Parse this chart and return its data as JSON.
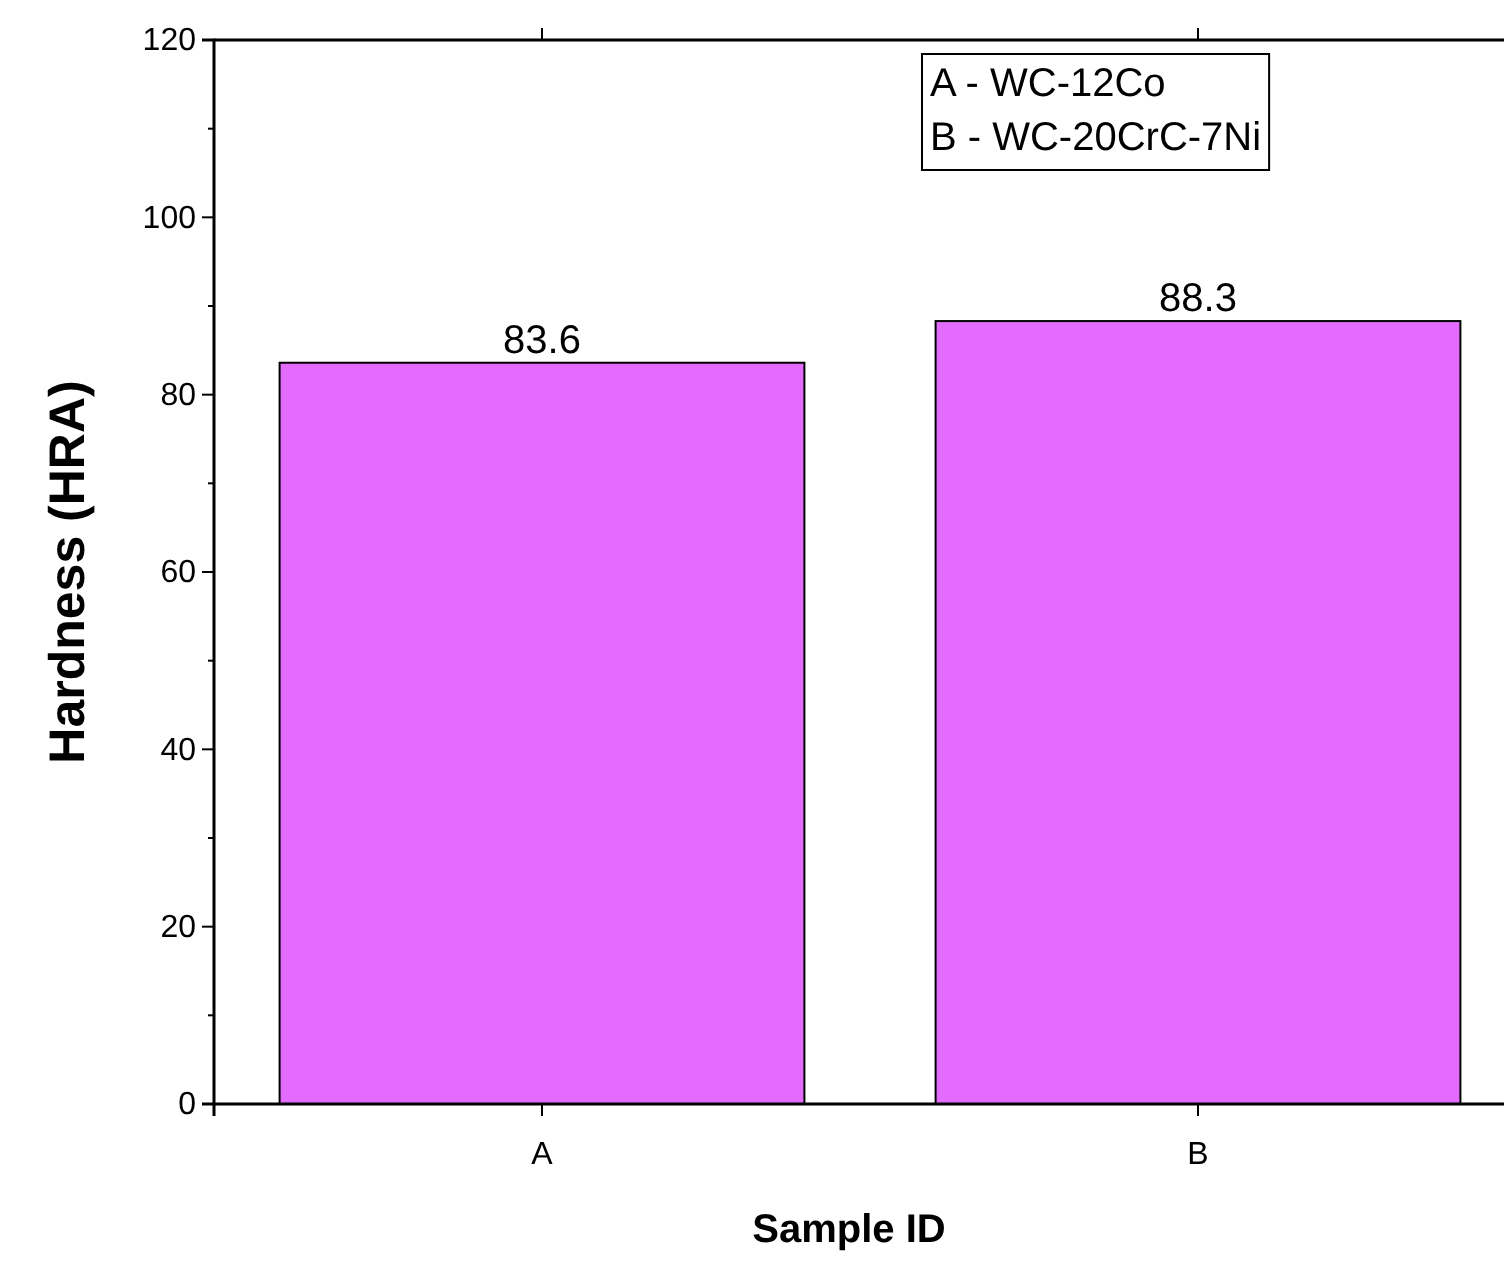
{
  "chart_data": {
    "type": "bar",
    "xlabel": "Sample ID",
    "ylabel": "Hardness (HRA)",
    "categories": [
      "A",
      "B"
    ],
    "values": [
      83.6,
      88.3
    ],
    "color": "#e36cff",
    "ylim": [
      0,
      120
    ],
    "yticks": [
      0,
      20,
      40,
      60,
      80,
      100,
      120
    ],
    "data_labels": true,
    "annotations": [
      "A - WC-12Co",
      "B - WC-20CrC-7Ni"
    ]
  }
}
